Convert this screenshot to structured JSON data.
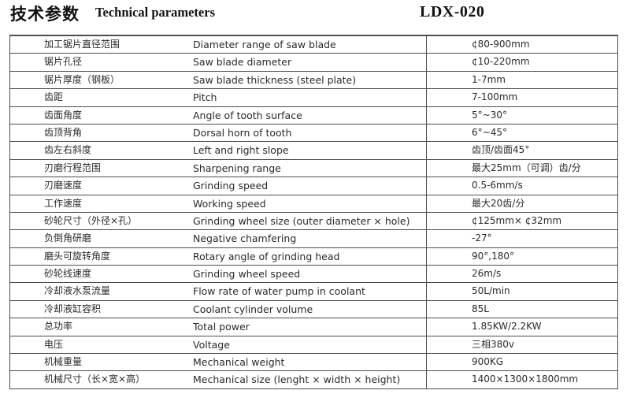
{
  "header": {
    "title_zh": "技术参数",
    "title_en": "Technical parameters",
    "model": "LDX-020"
  },
  "table": {
    "rows": [
      {
        "zh": "加工锯片直径范围",
        "en": "Diameter range of saw blade",
        "value": "¢80-900mm"
      },
      {
        "zh": "锯片孔径",
        "en": "Saw blade diameter",
        "value": "¢10-220mm"
      },
      {
        "zh": "锯片厚度（钢板）",
        "en": "Saw blade thickness (steel plate)",
        "value": "1-7mm"
      },
      {
        "zh": "齿距",
        "en": "Pitch",
        "value": "7-100mm"
      },
      {
        "zh": "齿面角度",
        "en": "Angle of tooth surface",
        "value": "5°~30°"
      },
      {
        "zh": "齿顶背角",
        "en": "Dorsal horn of tooth",
        "value": "6°~45°"
      },
      {
        "zh": "齿左右斜度",
        "en": "Left and right slope",
        "value": "齿顶/齿面45°"
      },
      {
        "zh": "刃磨行程范围",
        "en": "Sharpening range",
        "value": "最大25mm（可调）齿/分"
      },
      {
        "zh": "刃磨速度",
        "en": "Grinding speed",
        "value": "0.5-6mm/s"
      },
      {
        "zh": "工作速度",
        "en": "Working speed",
        "value": "最大20齿/分"
      },
      {
        "zh": "砂轮尺寸（外径×孔）",
        "en": "Grinding wheel size (outer diameter × hole)",
        "value": "¢125mm× ¢32mm"
      },
      {
        "zh": "负倒角研磨",
        "en": "Negative chamfering",
        "value": "-27°"
      },
      {
        "zh": "磨头可旋转角度",
        "en": "Rotary angle of grinding head",
        "value": "90°,180°"
      },
      {
        "zh": "砂轮线速度",
        "en": "Grinding wheel speed",
        "value": "26m/s"
      },
      {
        "zh": "冷却液水泵流量",
        "en": "Flow rate of water pump in coolant",
        "value": "50L/min"
      },
      {
        "zh": "冷却液缸容积",
        "en": "Coolant cylinder volume",
        "value": "85L"
      },
      {
        "zh": "总功率",
        "en": "Total power",
        "value": "1.85KW/2.2KW"
      },
      {
        "zh": "电压",
        "en": "Voltage",
        "value": "三相380v"
      },
      {
        "zh": "机械重量",
        "en": "Mechanical weight",
        "value": "900KG"
      },
      {
        "zh": "机械尺寸（长×宽×高）",
        "en": "Mechanical size (lenght × width × height)",
        "value": "1400×1300×1800mm"
      }
    ]
  },
  "colors": {
    "text": "#2a2a2a",
    "border": "#4d4d50",
    "background": "#ffffff"
  }
}
